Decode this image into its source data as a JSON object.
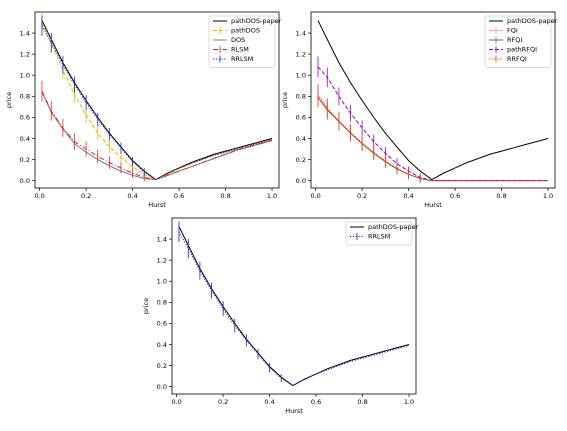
{
  "figure": {
    "description_panels": 3
  },
  "chart_data": [
    {
      "type": "line",
      "xlabel": "Hurst",
      "ylabel": "price",
      "xlim": [
        -0.02,
        1.03
      ],
      "ylim": [
        -0.07,
        1.6
      ],
      "xticks": [
        "0.0",
        "0.2",
        "0.4",
        "0.6",
        "0.8",
        "1.0"
      ],
      "yticks": [
        "0.0",
        "0.2",
        "0.4",
        "0.6",
        "0.8",
        "1.0",
        "1.2",
        "1.4"
      ],
      "legend": "top-right",
      "series": [
        {
          "name": "pathDOS-paper",
          "color": "#000000",
          "style": "solid",
          "x": [
            0.01,
            0.05,
            0.1,
            0.15,
            0.2,
            0.25,
            0.3,
            0.35,
            0.4,
            0.45,
            0.5,
            0.55,
            0.6,
            0.65,
            0.7,
            0.75,
            0.8,
            0.85,
            0.9,
            0.95,
            1.0
          ],
          "values": [
            1.52,
            1.34,
            1.12,
            0.93,
            0.76,
            0.6,
            0.45,
            0.32,
            0.19,
            0.09,
            0.01,
            0.07,
            0.12,
            0.17,
            0.21,
            0.25,
            0.28,
            0.31,
            0.34,
            0.37,
            0.4
          ]
        },
        {
          "name": "pathDOS",
          "color": "#f2b701",
          "style": "dashed",
          "x": [
            0.01,
            0.05,
            0.1,
            0.15,
            0.2,
            0.25,
            0.3,
            0.35,
            0.4,
            0.45,
            0.5,
            0.55,
            0.6,
            0.65,
            0.7,
            0.75,
            0.8,
            0.85,
            0.9,
            0.95,
            1.0
          ],
          "values": [
            1.5,
            1.3,
            1.05,
            0.82,
            0.62,
            0.45,
            0.32,
            0.22,
            0.13,
            0.06,
            0.01,
            0.06,
            0.11,
            0.16,
            0.2,
            0.24,
            0.27,
            0.3,
            0.33,
            0.36,
            0.39
          ]
        },
        {
          "name": "DOS",
          "color": "#7f7f7f",
          "style": "solid",
          "x": [
            0.01,
            0.05,
            0.1,
            0.15,
            0.2,
            0.25,
            0.3,
            0.35,
            0.4,
            0.45,
            0.5,
            0.55,
            0.6,
            0.65,
            0.7,
            0.75,
            0.8,
            0.85,
            0.9,
            0.95,
            1.0
          ],
          "values": [
            0.84,
            0.65,
            0.49,
            0.35,
            0.27,
            0.2,
            0.14,
            0.09,
            0.05,
            0.02,
            0.01,
            0.05,
            0.09,
            0.13,
            0.17,
            0.21,
            0.25,
            0.29,
            0.32,
            0.35,
            0.38
          ]
        },
        {
          "name": "RLSM",
          "color": "#d62728",
          "style": "dashdot",
          "x": [
            0.01,
            0.05,
            0.1,
            0.15,
            0.2,
            0.25,
            0.3,
            0.35,
            0.4,
            0.45,
            0.5,
            0.55,
            0.6,
            0.65,
            0.7,
            0.75,
            0.8,
            0.85,
            0.9,
            0.95,
            1.0
          ],
          "values": [
            0.85,
            0.66,
            0.5,
            0.37,
            0.3,
            0.23,
            0.17,
            0.12,
            0.07,
            0.03,
            0.01,
            0.05,
            0.09,
            0.13,
            0.17,
            0.21,
            0.25,
            0.29,
            0.32,
            0.35,
            0.38
          ]
        },
        {
          "name": "RRLSM",
          "color": "#1f1fbf",
          "style": "dotted",
          "x": [
            0.01,
            0.05,
            0.1,
            0.15,
            0.2,
            0.25,
            0.3,
            0.35,
            0.4,
            0.45,
            0.5,
            0.55,
            0.6,
            0.65,
            0.7,
            0.75,
            0.8,
            0.85,
            0.9,
            0.95,
            1.0
          ],
          "values": [
            1.47,
            1.31,
            1.1,
            0.91,
            0.74,
            0.58,
            0.44,
            0.31,
            0.18,
            0.08,
            0.01,
            0.07,
            0.12,
            0.16,
            0.2,
            0.24,
            0.27,
            0.3,
            0.33,
            0.36,
            0.39
          ]
        }
      ]
    },
    {
      "type": "line",
      "xlabel": "Hurst",
      "ylabel": "price",
      "xlim": [
        -0.02,
        1.03
      ],
      "ylim": [
        -0.07,
        1.6
      ],
      "xticks": [
        "0.0",
        "0.2",
        "0.4",
        "0.6",
        "0.8",
        "1.0"
      ],
      "yticks": [
        "0.0",
        "0.2",
        "0.4",
        "0.6",
        "0.8",
        "1.0",
        "1.2",
        "1.4"
      ],
      "legend": "top-right",
      "series": [
        {
          "name": "pathDOS-paper",
          "color": "#000000",
          "style": "solid",
          "x": [
            0.01,
            0.05,
            0.1,
            0.15,
            0.2,
            0.25,
            0.3,
            0.35,
            0.4,
            0.45,
            0.5,
            0.55,
            0.6,
            0.65,
            0.7,
            0.75,
            0.8,
            0.85,
            0.9,
            0.95,
            1.0
          ],
          "values": [
            1.52,
            1.34,
            1.12,
            0.93,
            0.76,
            0.6,
            0.45,
            0.32,
            0.19,
            0.09,
            0.01,
            0.07,
            0.12,
            0.17,
            0.21,
            0.25,
            0.28,
            0.31,
            0.34,
            0.37,
            0.4
          ]
        },
        {
          "name": "FQI",
          "color": "#ff9eb0",
          "style": "solid",
          "x": [
            0.01,
            0.05,
            0.1,
            0.15,
            0.2,
            0.25,
            0.3,
            0.35,
            0.4,
            0.45,
            0.5,
            0.6,
            0.7,
            0.8,
            0.9,
            1.0
          ],
          "values": [
            0.8,
            0.68,
            0.56,
            0.45,
            0.35,
            0.26,
            0.18,
            0.11,
            0.06,
            0.02,
            0.0,
            0.0,
            0.0,
            0.0,
            0.0,
            0.0
          ]
        },
        {
          "name": "RFQI",
          "color": "#8c6a14",
          "style": "solid",
          "x": [
            0.01,
            0.05,
            0.1,
            0.15,
            0.2,
            0.25,
            0.3,
            0.35,
            0.4,
            0.45,
            0.5,
            0.6,
            0.7,
            0.8,
            0.9,
            1.0
          ],
          "values": [
            0.79,
            0.67,
            0.56,
            0.45,
            0.35,
            0.26,
            0.18,
            0.11,
            0.06,
            0.02,
            0.0,
            0.0,
            0.0,
            0.0,
            0.0,
            0.0
          ]
        },
        {
          "name": "pathRFQI",
          "color": "#9400b8",
          "style": "dashed",
          "x": [
            0.01,
            0.05,
            0.1,
            0.15,
            0.2,
            0.25,
            0.3,
            0.35,
            0.4,
            0.45,
            0.5,
            0.6,
            0.7,
            0.8,
            0.9,
            1.0
          ],
          "values": [
            1.08,
            0.98,
            0.8,
            0.64,
            0.5,
            0.37,
            0.26,
            0.16,
            0.09,
            0.03,
            0.0,
            0.0,
            0.0,
            0.0,
            0.0,
            0.0
          ]
        },
        {
          "name": "RRFQI",
          "color": "#e8433f",
          "style": "dotted",
          "x": [
            0.01,
            0.05,
            0.1,
            0.15,
            0.2,
            0.25,
            0.3,
            0.35,
            0.4,
            0.45,
            0.5,
            0.6,
            0.7,
            0.8,
            0.9,
            1.0
          ],
          "values": [
            0.82,
            0.69,
            0.57,
            0.46,
            0.36,
            0.27,
            0.19,
            0.12,
            0.06,
            0.02,
            0.0,
            0.0,
            0.0,
            0.0,
            0.0,
            0.0
          ]
        }
      ]
    },
    {
      "type": "line",
      "xlabel": "Hurst",
      "ylabel": "price",
      "xlim": [
        -0.02,
        1.03
      ],
      "ylim": [
        -0.07,
        1.6
      ],
      "xticks": [
        "0.0",
        "0.2",
        "0.4",
        "0.6",
        "0.8",
        "1.0"
      ],
      "yticks": [
        "0.0",
        "0.2",
        "0.4",
        "0.6",
        "0.8",
        "1.0",
        "1.2",
        "1.4"
      ],
      "legend": "top-right",
      "series": [
        {
          "name": "pathDOS-paper",
          "color": "#000000",
          "style": "solid",
          "x": [
            0.01,
            0.05,
            0.1,
            0.15,
            0.2,
            0.25,
            0.3,
            0.35,
            0.4,
            0.45,
            0.5,
            0.55,
            0.6,
            0.65,
            0.7,
            0.75,
            0.8,
            0.85,
            0.9,
            0.95,
            1.0
          ],
          "values": [
            1.52,
            1.34,
            1.12,
            0.93,
            0.76,
            0.6,
            0.45,
            0.32,
            0.19,
            0.09,
            0.01,
            0.07,
            0.12,
            0.17,
            0.21,
            0.25,
            0.28,
            0.31,
            0.34,
            0.37,
            0.4
          ]
        },
        {
          "name": "RRLSM",
          "color": "#1f1fbf",
          "style": "dotted",
          "x": [
            0.01,
            0.05,
            0.1,
            0.15,
            0.2,
            0.25,
            0.3,
            0.35,
            0.4,
            0.45,
            0.5,
            0.55,
            0.6,
            0.65,
            0.7,
            0.75,
            0.8,
            0.85,
            0.9,
            0.95,
            1.0
          ],
          "values": [
            1.47,
            1.31,
            1.1,
            0.91,
            0.74,
            0.58,
            0.44,
            0.31,
            0.18,
            0.08,
            0.01,
            0.07,
            0.12,
            0.16,
            0.2,
            0.24,
            0.27,
            0.3,
            0.33,
            0.36,
            0.39
          ]
        }
      ]
    }
  ]
}
